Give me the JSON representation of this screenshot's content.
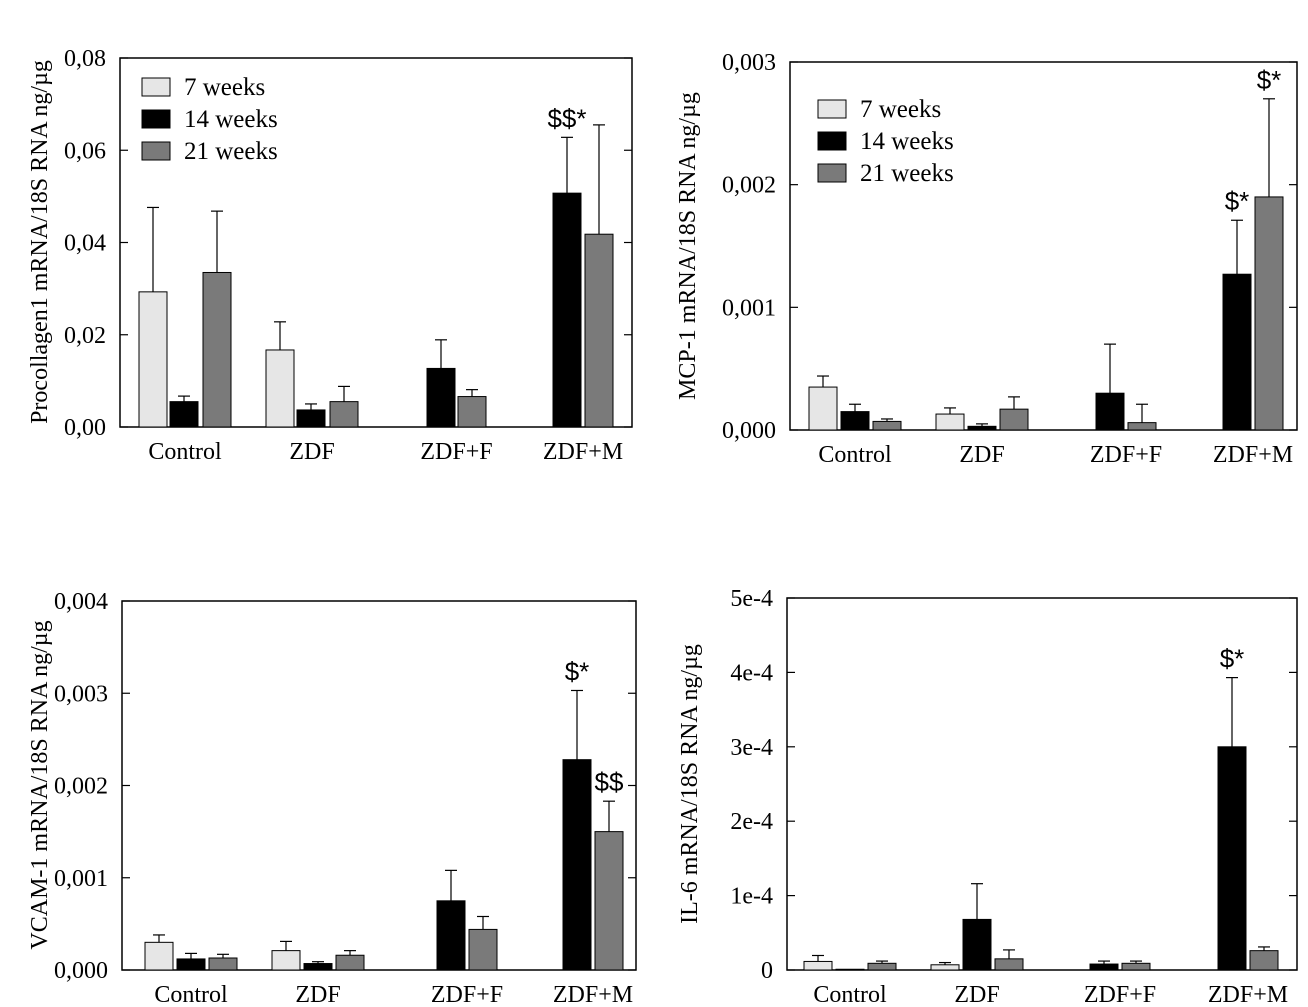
{
  "chart_data": [
    {
      "type": "bar",
      "ylabel": "Procollagen1 mRNA/18S RNA ng/µg",
      "categories": [
        "Control",
        "ZDF",
        "ZDF+F",
        "ZDF+M"
      ],
      "ylim": [
        0,
        0.08
      ],
      "yticks": [
        "0,00",
        "0,02",
        "0,04",
        "0,06",
        "0,08"
      ],
      "tick_values": [
        0,
        0.02,
        0.04,
        0.06,
        0.08
      ],
      "legend": [
        "7 weeks",
        "14 weeks",
        "21 weeks"
      ],
      "legend_position": "top-left",
      "series": [
        {
          "name": "7 weeks",
          "color": "#e6e6e6",
          "values": [
            0.0293,
            0.0167,
            null,
            null
          ],
          "errors": [
            0.0183,
            0.0061,
            null,
            null
          ]
        },
        {
          "name": "14 weeks",
          "color": "#000000",
          "values": [
            0.0055,
            0.0037,
            0.0127,
            0.0507
          ],
          "errors": [
            0.0012,
            0.0013,
            0.0062,
            0.0121
          ]
        },
        {
          "name": "21 weeks",
          "color": "#7a7a7a",
          "values": [
            0.0335,
            0.0055,
            0.0066,
            0.0418
          ],
          "errors": [
            0.0133,
            0.0033,
            0.0015,
            0.0237
          ]
        }
      ],
      "annotations": [
        {
          "text": "$$*",
          "category": "ZDF+M",
          "series": "14 weeks"
        }
      ]
    },
    {
      "type": "bar",
      "ylabel": "MCP-1 mRNA/18S RNA ng/µg",
      "categories": [
        "Control",
        "ZDF",
        "ZDF+F",
        "ZDF+M"
      ],
      "ylim": [
        0,
        0.003
      ],
      "yticks": [
        "0,000",
        "0,001",
        "0,002",
        "0,003"
      ],
      "tick_values": [
        0,
        0.001,
        0.002,
        0.003
      ],
      "legend": [
        "7 weeks",
        "14 weeks",
        "21 weeks"
      ],
      "legend_position": "top-left",
      "series": [
        {
          "name": "7 weeks",
          "color": "#e6e6e6",
          "values": [
            0.00035,
            0.00013,
            null,
            null
          ],
          "errors": [
            9e-05,
            5e-05,
            null,
            null
          ]
        },
        {
          "name": "14 weeks",
          "color": "#000000",
          "values": [
            0.00015,
            3e-05,
            0.0003,
            0.00127
          ],
          "errors": [
            6e-05,
            2e-05,
            0.0004,
            0.00044
          ]
        },
        {
          "name": "21 weeks",
          "color": "#7a7a7a",
          "values": [
            7e-05,
            0.00017,
            6e-05,
            0.0019
          ],
          "errors": [
            2e-05,
            0.0001,
            0.00015,
            0.0008
          ]
        }
      ],
      "annotations": [
        {
          "text": "$*",
          "category": "ZDF+M",
          "series": "14 weeks"
        },
        {
          "text": "$*",
          "category": "ZDF+M",
          "series": "21 weeks"
        }
      ]
    },
    {
      "type": "bar",
      "ylabel": "VCAM-1 mRNA/18S RNA ng/µg",
      "categories": [
        "Control",
        "ZDF",
        "ZDF+F",
        "ZDF+M"
      ],
      "ylim": [
        0,
        0.004
      ],
      "yticks": [
        "0,000",
        "0,001",
        "0,002",
        "0,003",
        "0,004"
      ],
      "tick_values": [
        0,
        0.001,
        0.002,
        0.003,
        0.004
      ],
      "series": [
        {
          "name": "7 weeks",
          "color": "#e6e6e6",
          "values": [
            0.0003,
            0.00021,
            null,
            null
          ],
          "errors": [
            8e-05,
            0.0001,
            null,
            null
          ]
        },
        {
          "name": "14 weeks",
          "color": "#000000",
          "values": [
            0.00012,
            7e-05,
            0.00075,
            0.00228
          ],
          "errors": [
            6e-05,
            2e-05,
            0.00033,
            0.00075
          ]
        },
        {
          "name": "21 weeks",
          "color": "#7a7a7a",
          "values": [
            0.00013,
            0.00016,
            0.00044,
            0.0015
          ],
          "errors": [
            4e-05,
            5e-05,
            0.00014,
            0.00033
          ]
        }
      ],
      "annotations": [
        {
          "text": "$*",
          "category": "ZDF+M",
          "series": "14 weeks"
        },
        {
          "text": "$$",
          "category": "ZDF+M",
          "series": "21 weeks"
        }
      ]
    },
    {
      "type": "bar",
      "ylabel": "IL-6 mRNA/18S RNA ng/µg",
      "categories": [
        "Control",
        "ZDF",
        "ZDF+F",
        "ZDF+M"
      ],
      "ylim": [
        0,
        0.0005
      ],
      "yticks": [
        "0",
        "1e-4",
        "2e-4",
        "3e-4",
        "4e-4",
        "5e-4"
      ],
      "tick_values": [
        0,
        0.0001,
        0.0002,
        0.0003,
        0.0004,
        0.0005
      ],
      "series": [
        {
          "name": "7 weeks",
          "color": "#e6e6e6",
          "values": [
            1.15e-05,
            7e-06,
            null,
            null
          ],
          "errors": [
            8e-06,
            3e-06,
            null,
            null
          ]
        },
        {
          "name": "14 weeks",
          "color": "#000000",
          "values": [
            1e-06,
            6.8e-05,
            8e-06,
            0.0003
          ],
          "errors": [
            0,
            4.8e-05,
            4e-06,
            9.3e-05
          ]
        },
        {
          "name": "21 weeks",
          "color": "#7a7a7a",
          "values": [
            9e-06,
            1.5e-05,
            9e-06,
            2.6e-05
          ],
          "errors": [
            3e-06,
            1.2e-05,
            3e-06,
            5e-06
          ]
        }
      ],
      "annotations": [
        {
          "text": "$*",
          "category": "ZDF+M",
          "series": "14 weeks"
        }
      ]
    }
  ]
}
